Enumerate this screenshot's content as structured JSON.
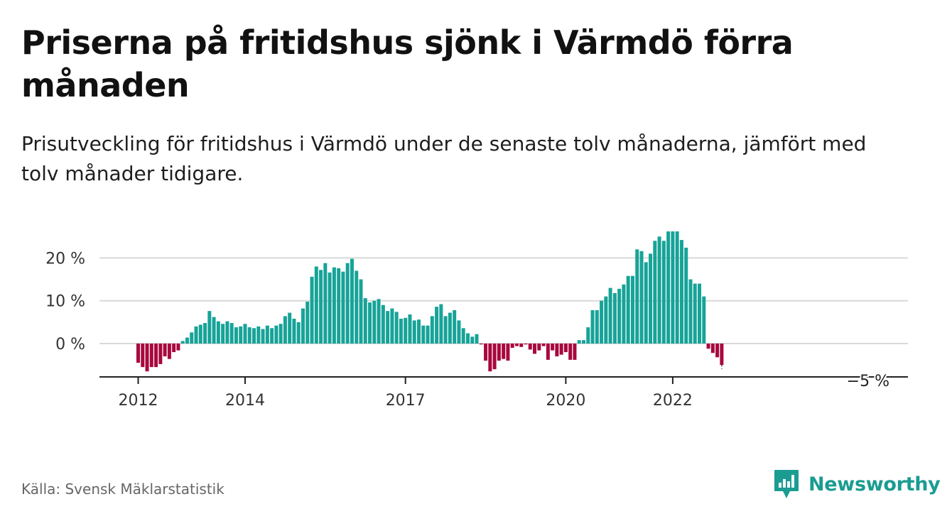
{
  "header": {
    "title": "Priserna på fritidshus sjönk i Värmdö förra månaden",
    "subtitle": "Prisutveckling för fritidshus i Värmdö under de senaste tolv månaderna, jämfört med tolv månader tidigare."
  },
  "footer": {
    "source": "Källa: Svensk Mäklarstatistik",
    "brand": "Newsworthy"
  },
  "colors": {
    "positive": "#17a398",
    "negative": "#a8073e",
    "grid": "#d9d9d9",
    "brand": "#1a9c91"
  },
  "chart_data": {
    "type": "bar",
    "ytick_labels": [
      "20 %",
      "10 %",
      "0 %"
    ],
    "ytick_values": [
      20,
      10,
      0
    ],
    "xtick_labels": [
      "2012",
      "2014",
      "2017",
      "2020",
      "2022"
    ],
    "xtick_dates": [
      "2012-01",
      "2014-01",
      "2017-01",
      "2020-01",
      "2022-01"
    ],
    "end_label": "−5 %",
    "ylim": [
      -7,
      27
    ],
    "grid": true,
    "x": [
      "2012-01",
      "2012-02",
      "2012-03",
      "2012-04",
      "2012-05",
      "2012-06",
      "2012-07",
      "2012-08",
      "2012-09",
      "2012-10",
      "2012-11",
      "2012-12",
      "2013-01",
      "2013-02",
      "2013-03",
      "2013-04",
      "2013-05",
      "2013-06",
      "2013-07",
      "2013-08",
      "2013-09",
      "2013-10",
      "2013-11",
      "2013-12",
      "2014-01",
      "2014-02",
      "2014-03",
      "2014-04",
      "2014-05",
      "2014-06",
      "2014-07",
      "2014-08",
      "2014-09",
      "2014-10",
      "2014-11",
      "2014-12",
      "2015-01",
      "2015-02",
      "2015-03",
      "2015-04",
      "2015-05",
      "2015-06",
      "2015-07",
      "2015-08",
      "2015-09",
      "2015-10",
      "2015-11",
      "2015-12",
      "2016-01",
      "2016-02",
      "2016-03",
      "2016-04",
      "2016-05",
      "2016-06",
      "2016-07",
      "2016-08",
      "2016-09",
      "2016-10",
      "2016-11",
      "2016-12",
      "2017-01",
      "2017-02",
      "2017-03",
      "2017-04",
      "2017-05",
      "2017-06",
      "2017-07",
      "2017-08",
      "2017-09",
      "2017-10",
      "2017-11",
      "2017-12",
      "2018-01",
      "2018-02",
      "2018-03",
      "2018-04",
      "2018-05",
      "2018-06",
      "2018-07",
      "2018-08",
      "2018-09",
      "2018-10",
      "2018-11",
      "2018-12",
      "2019-01",
      "2019-02",
      "2019-03",
      "2019-04",
      "2019-05",
      "2019-06",
      "2019-07",
      "2019-08",
      "2019-09",
      "2019-10",
      "2019-11",
      "2019-12",
      "2020-01",
      "2020-02",
      "2020-03",
      "2020-04",
      "2020-05",
      "2020-06",
      "2020-07",
      "2020-08",
      "2020-09",
      "2020-10",
      "2020-11",
      "2020-12",
      "2021-01",
      "2021-02",
      "2021-03",
      "2021-04",
      "2021-05",
      "2021-06",
      "2021-07",
      "2021-08",
      "2021-09",
      "2021-10",
      "2021-11",
      "2021-12",
      "2022-01",
      "2022-02",
      "2022-03",
      "2022-04",
      "2022-05",
      "2022-06",
      "2022-07",
      "2022-08",
      "2022-09",
      "2022-10",
      "2022-11",
      "2022-12"
    ],
    "values": [
      -4.5,
      -5.5,
      -6.5,
      -5.5,
      -5.5,
      -4.8,
      -3,
      -3.6,
      -2,
      -1.6,
      0.6,
      1.4,
      2.6,
      4,
      4.4,
      4.8,
      7.6,
      6.2,
      5.2,
      4.6,
      5.2,
      4.8,
      3.8,
      4,
      4.6,
      3.8,
      3.6,
      4,
      3.4,
      4.2,
      3.6,
      4.2,
      4.6,
      6.4,
      7.2,
      5.8,
      5,
      8.2,
      9.8,
      15.6,
      18,
      17.2,
      18.8,
      16.6,
      17.8,
      17.6,
      16.8,
      18.8,
      19.8,
      17,
      15,
      10.6,
      9.6,
      10,
      10.4,
      9,
      7.6,
      8.2,
      7.4,
      5.8,
      6,
      6.8,
      5.4,
      5.6,
      4.2,
      4.2,
      6.4,
      8.6,
      9.2,
      6.4,
      7.2,
      7.8,
      5.4,
      3.6,
      2.4,
      1.6,
      2.2,
      -0.2,
      -4,
      -6.5,
      -6,
      -4,
      -3.6,
      -4,
      -1,
      -0.6,
      -0.8,
      -0.2,
      -1.4,
      -2.4,
      -1.6,
      -0.6,
      -3.8,
      -1.6,
      -3,
      -2.6,
      -2,
      -3.8,
      -3.8,
      0.8,
      0.8,
      3.8,
      7.8,
      7.8,
      10,
      11,
      13,
      11.8,
      12.8,
      13.8,
      15.8,
      15.8,
      22,
      21.6,
      19,
      21,
      24,
      25,
      24,
      26.2,
      26.2,
      26.2,
      24.2,
      22.4,
      15,
      14,
      14,
      11,
      -1.2,
      -2.2,
      -3.2,
      -5
    ]
  }
}
